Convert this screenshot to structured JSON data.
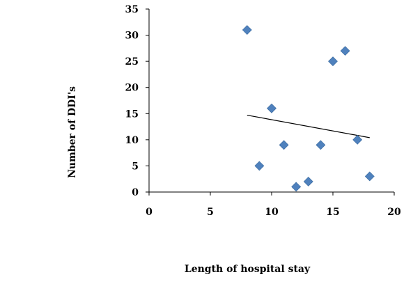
{
  "chart_data": {
    "type": "scatter",
    "title": "",
    "xlabel": "Length of hospital stay",
    "ylabel": "Number of DDI's",
    "xlim": [
      0,
      20
    ],
    "ylim": [
      0,
      35
    ],
    "xticks": [
      0,
      5,
      10,
      15,
      20
    ],
    "yticks": [
      0,
      5,
      10,
      15,
      20,
      25,
      30,
      35
    ],
    "grid": false,
    "legend": "none",
    "marker": "diamond",
    "marker_color": "#4f81bd",
    "trendline_color": "#000000",
    "series": [
      {
        "points": [
          {
            "x": 8,
            "y": 31
          },
          {
            "x": 9,
            "y": 5
          },
          {
            "x": 10,
            "y": 16
          },
          {
            "x": 11,
            "y": 9
          },
          {
            "x": 12,
            "y": 1
          },
          {
            "x": 13,
            "y": 2
          },
          {
            "x": 14,
            "y": 9
          },
          {
            "x": 15,
            "y": 25
          },
          {
            "x": 16,
            "y": 27
          },
          {
            "x": 17,
            "y": 10
          },
          {
            "x": 18,
            "y": 3
          }
        ]
      }
    ],
    "trendline": {
      "type": "linear",
      "x_start": 8,
      "y_start": 14.7,
      "x_end": 18,
      "y_end": 10.4
    }
  }
}
